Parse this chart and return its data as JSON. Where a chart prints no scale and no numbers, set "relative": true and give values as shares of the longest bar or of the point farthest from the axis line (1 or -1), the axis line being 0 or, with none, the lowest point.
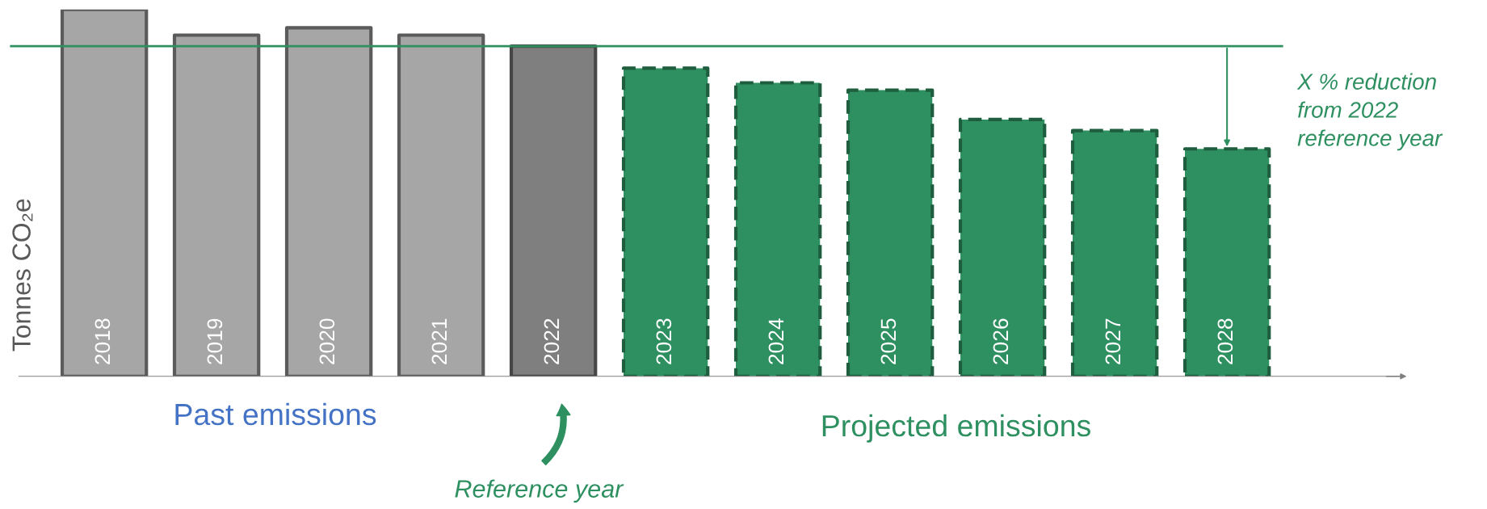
{
  "chart_data": {
    "type": "bar",
    "relative": true,
    "ylabel": "Tonnes CO₂e",
    "categories": [
      "2018",
      "2019",
      "2020",
      "2021",
      "2022",
      "2023",
      "2024",
      "2025",
      "2026",
      "2027",
      "2028"
    ],
    "series": [
      {
        "color": "#a6a6a6",
        "values": [
          1,
          0.93,
          0.95,
          0.93,
          null,
          null,
          null,
          null,
          null,
          null,
          null
        ]
      },
      {
        "color": "#7f7f7f",
        "values": [
          null,
          null,
          null,
          null,
          0.9,
          null,
          null,
          null,
          null,
          null,
          null
        ]
      },
      {
        "color": "#2e9060",
        "line_style": "dashed",
        "values": [
          null,
          null,
          null,
          null,
          null,
          0.84,
          0.8,
          0.78,
          0.7,
          0.67,
          0.62
        ]
      }
    ],
    "ref_lines": [
      {
        "axis": "y",
        "value": 0.9,
        "color": "#2e9060"
      }
    ],
    "annotations": [
      "Past emissions",
      "Projected emissions",
      "Reference year",
      "X % reduction\nfrom 2022\nreference year"
    ]
  }
}
